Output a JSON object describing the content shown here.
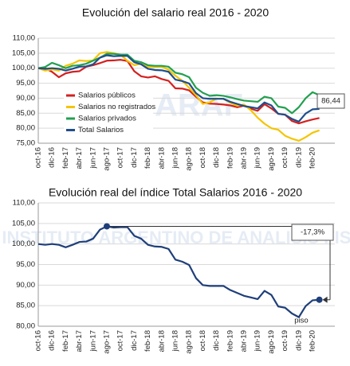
{
  "chart_data": [
    {
      "type": "line",
      "title": "Evolución del salario real 2016 - 2020",
      "watermark": "IARAF",
      "categories": [
        "oct-16",
        null,
        "dic-16",
        null,
        "feb-17",
        null,
        "abr-17",
        null,
        "jun-17",
        null,
        "ago-17",
        null,
        "oct-17",
        null,
        "dic-17",
        null,
        "feb-18",
        null,
        "abr-18",
        null,
        "jun-18",
        null,
        "ago-18",
        null,
        "oct-18",
        null,
        "dic-18",
        null,
        "feb-19",
        null,
        "abr-19",
        null,
        "jun-19",
        null,
        "ago-19",
        null,
        "oct-19",
        null,
        "dic-19",
        null,
        "feb-20",
        null
      ],
      "series": [
        {
          "name": "Salarios públicos",
          "color": "#d42020",
          "values": [
            100,
            100,
            98.8,
            97.0,
            98.3,
            98.8,
            99.0,
            100.5,
            101.0,
            101.7,
            102.5,
            102.6,
            102.8,
            102.4,
            99.0,
            97.3,
            96.9,
            97.3,
            96.4,
            95.8,
            93.3,
            93.2,
            92.6,
            90.5,
            88.6,
            88.2,
            88.1,
            87.9,
            87.6,
            87.0,
            87.5,
            86.5,
            85.8,
            88.0,
            86.6,
            84.8,
            84.5,
            82.4,
            81.6,
            82.3,
            82.9,
            83.4
          ]
        },
        {
          "name": "Salarios no registrados",
          "color": "#f5c400",
          "values": [
            100,
            99.2,
            99.6,
            99.2,
            100.8,
            101.5,
            102.6,
            102.4,
            102.6,
            105.0,
            105.4,
            105.0,
            104.5,
            102.5,
            101.0,
            101.5,
            100.5,
            100.4,
            100.5,
            99.5,
            97.5,
            95.8,
            93.5,
            91.0,
            88.1,
            88.6,
            89.9,
            89.8,
            88.5,
            87.5,
            87.9,
            86.0,
            83.5,
            81.5,
            80.0,
            79.5,
            77.5,
            76.5,
            75.8,
            77.0,
            78.5,
            79.3
          ]
        },
        {
          "name": "Salarios privados",
          "color": "#22a050",
          "values": [
            100,
            100.4,
            101.8,
            101.0,
            100.0,
            100.8,
            101.0,
            101.5,
            102.5,
            103.5,
            104.8,
            104.8,
            104.5,
            104.5,
            102.5,
            102.0,
            101.0,
            100.8,
            100.8,
            100.5,
            98.5,
            98.0,
            97.0,
            93.5,
            91.8,
            90.8,
            91.0,
            90.8,
            90.3,
            89.7,
            89.2,
            89.0,
            88.8,
            90.5,
            90.0,
            87.2,
            86.8,
            85.0,
            87.0,
            90.0,
            92.0,
            91.0
          ]
        },
        {
          "name": "Total Salarios",
          "color": "#1f4e8c",
          "values": [
            100,
            99.8,
            100,
            99.8,
            99.2,
            99.8,
            100.5,
            100.6,
            101.3,
            103.5,
            104.3,
            104.0,
            104.1,
            104.1,
            102.0,
            101.3,
            99.8,
            99.4,
            99.3,
            98.8,
            96.2,
            95.7,
            94.9,
            91.7,
            90.0,
            89.8,
            89.8,
            89.8,
            88.8,
            88.1,
            87.4,
            87.0,
            86.6,
            88.6,
            87.6,
            84.8,
            84.5,
            83.1,
            82.2,
            84.9,
            86.3,
            86.44
          ]
        }
      ],
      "annotations": [
        "86,44"
      ],
      "ylim": [
        75,
        110
      ],
      "yticks": [
        {
          "value": 75,
          "label": "75,00"
        },
        {
          "value": 80,
          "label": "80,00"
        },
        {
          "value": 85,
          "label": "85,00"
        },
        {
          "value": 90,
          "label": "90,00"
        },
        {
          "value": 95,
          "label": "95,00"
        },
        {
          "value": 100,
          "label": "100,00"
        },
        {
          "value": 105,
          "label": "105,00"
        },
        {
          "value": 110,
          "label": "110,00"
        }
      ],
      "grid": true
    },
    {
      "type": "line",
      "title": "Evolución real del índice Total Salarios 2016 - 2020",
      "watermark": "INSTITUTO ARGENTINO DE ANALISIS FISCAL",
      "categories": [
        "oct-16",
        null,
        "dic-16",
        null,
        "feb-17",
        null,
        "abr-17",
        null,
        "jun-17",
        null,
        "ago-17",
        null,
        "oct-17",
        null,
        "dic-17",
        null,
        "feb-18",
        null,
        "abr-18",
        null,
        "jun-18",
        null,
        "ago-18",
        null,
        "oct-18",
        null,
        "dic-18",
        null,
        "feb-19",
        null,
        "abr-19",
        null,
        "jun-19",
        null,
        "ago-19",
        null,
        "oct-19",
        null,
        "dic-19",
        null,
        "feb-20",
        null
      ],
      "color": "#1f3f7a",
      "values": [
        100,
        99.8,
        100,
        99.8,
        99.2,
        99.8,
        100.5,
        100.6,
        101.3,
        103.5,
        104.3,
        104.0,
        104.1,
        104.1,
        102.0,
        101.3,
        99.8,
        99.4,
        99.3,
        98.8,
        96.2,
        95.7,
        94.9,
        91.7,
        90.0,
        89.8,
        89.8,
        89.8,
        88.8,
        88.1,
        87.4,
        87.0,
        86.6,
        88.6,
        87.6,
        84.8,
        84.5,
        83.1,
        82.2,
        84.9,
        86.3,
        86.44
      ],
      "annotations": [
        "-17,3%",
        "piso"
      ],
      "ylim": [
        80,
        110
      ],
      "yticks": [
        {
          "value": 80,
          "label": "80,00"
        },
        {
          "value": 85,
          "label": "85,00"
        },
        {
          "value": 90,
          "label": "90,00"
        },
        {
          "value": 95,
          "label": "95,00"
        },
        {
          "value": 100,
          "label": "100,00"
        },
        {
          "value": 105,
          "label": "105,00"
        },
        {
          "value": 110,
          "label": "110,00"
        }
      ],
      "grid": true
    }
  ]
}
